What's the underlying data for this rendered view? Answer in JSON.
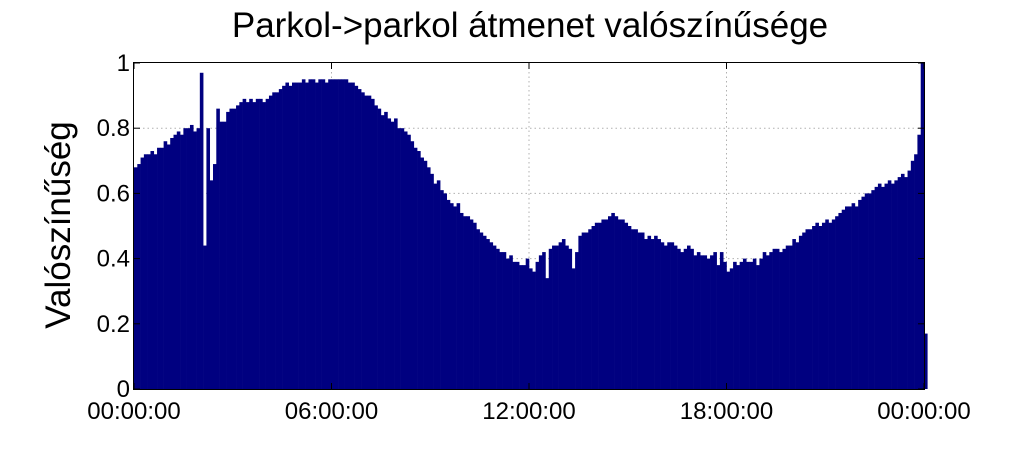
{
  "chart_data": {
    "type": "bar",
    "title": "Parkol->parkol átmenet valószínűsége",
    "xlabel": "",
    "ylabel": "Valószínűség",
    "xlim": [
      0,
      24
    ],
    "ylim": [
      0,
      1
    ],
    "grid": true,
    "color": "#000080",
    "x_ticks": [
      {
        "value": 0,
        "label": "00:00:00"
      },
      {
        "value": 6,
        "label": "06:00:00"
      },
      {
        "value": 12,
        "label": "12:00:00"
      },
      {
        "value": 18,
        "label": "18:00:00"
      },
      {
        "value": 24,
        "label": "00:00:00"
      }
    ],
    "y_ticks": [
      {
        "value": 0,
        "label": "0"
      },
      {
        "value": 0.2,
        "label": "0.2"
      },
      {
        "value": 0.4,
        "label": "0.4"
      },
      {
        "value": 0.6,
        "label": "0.6"
      },
      {
        "value": 0.8,
        "label": "0.8"
      },
      {
        "value": 1,
        "label": "1"
      }
    ],
    "bin_width_hours": 0.1,
    "values": [
      0.68,
      0.69,
      0.71,
      0.72,
      0.72,
      0.73,
      0.72,
      0.74,
      0.74,
      0.76,
      0.75,
      0.77,
      0.78,
      0.79,
      0.78,
      0.8,
      0.8,
      0.81,
      0.79,
      0.8,
      0.97,
      0.44,
      0.8,
      0.64,
      0.69,
      0.86,
      0.82,
      0.82,
      0.85,
      0.86,
      0.86,
      0.87,
      0.88,
      0.89,
      0.88,
      0.89,
      0.88,
      0.89,
      0.89,
      0.88,
      0.89,
      0.9,
      0.91,
      0.91,
      0.92,
      0.93,
      0.94,
      0.93,
      0.94,
      0.94,
      0.94,
      0.95,
      0.94,
      0.95,
      0.95,
      0.94,
      0.95,
      0.95,
      0.94,
      0.95,
      0.95,
      0.95,
      0.95,
      0.95,
      0.95,
      0.94,
      0.94,
      0.93,
      0.92,
      0.91,
      0.9,
      0.9,
      0.89,
      0.87,
      0.86,
      0.84,
      0.85,
      0.83,
      0.82,
      0.83,
      0.8,
      0.8,
      0.79,
      0.78,
      0.76,
      0.74,
      0.73,
      0.71,
      0.7,
      0.68,
      0.66,
      0.63,
      0.64,
      0.61,
      0.6,
      0.58,
      0.57,
      0.56,
      0.57,
      0.54,
      0.53,
      0.53,
      0.52,
      0.51,
      0.49,
      0.48,
      0.47,
      0.46,
      0.45,
      0.44,
      0.43,
      0.42,
      0.42,
      0.4,
      0.41,
      0.39,
      0.39,
      0.38,
      0.38,
      0.4,
      0.37,
      0.36,
      0.39,
      0.41,
      0.42,
      0.34,
      0.43,
      0.44,
      0.44,
      0.45,
      0.46,
      0.44,
      0.43,
      0.37,
      0.42,
      0.47,
      0.48,
      0.48,
      0.49,
      0.5,
      0.51,
      0.51,
      0.52,
      0.52,
      0.53,
      0.54,
      0.53,
      0.52,
      0.52,
      0.51,
      0.5,
      0.49,
      0.49,
      0.48,
      0.48,
      0.46,
      0.47,
      0.46,
      0.47,
      0.46,
      0.45,
      0.44,
      0.45,
      0.45,
      0.44,
      0.43,
      0.42,
      0.43,
      0.44,
      0.43,
      0.41,
      0.42,
      0.41,
      0.41,
      0.4,
      0.41,
      0.42,
      0.38,
      0.42,
      0.39,
      0.36,
      0.37,
      0.39,
      0.38,
      0.39,
      0.4,
      0.39,
      0.39,
      0.4,
      0.38,
      0.4,
      0.42,
      0.41,
      0.42,
      0.43,
      0.43,
      0.42,
      0.43,
      0.44,
      0.44,
      0.46,
      0.45,
      0.47,
      0.48,
      0.49,
      0.49,
      0.5,
      0.51,
      0.5,
      0.51,
      0.52,
      0.51,
      0.52,
      0.53,
      0.54,
      0.55,
      0.56,
      0.56,
      0.57,
      0.56,
      0.58,
      0.59,
      0.6,
      0.6,
      0.61,
      0.62,
      0.63,
      0.62,
      0.63,
      0.64,
      0.63,
      0.64,
      0.65,
      0.66,
      0.65,
      0.67,
      0.7,
      0.72,
      0.78,
      1.0,
      0.17
    ]
  }
}
